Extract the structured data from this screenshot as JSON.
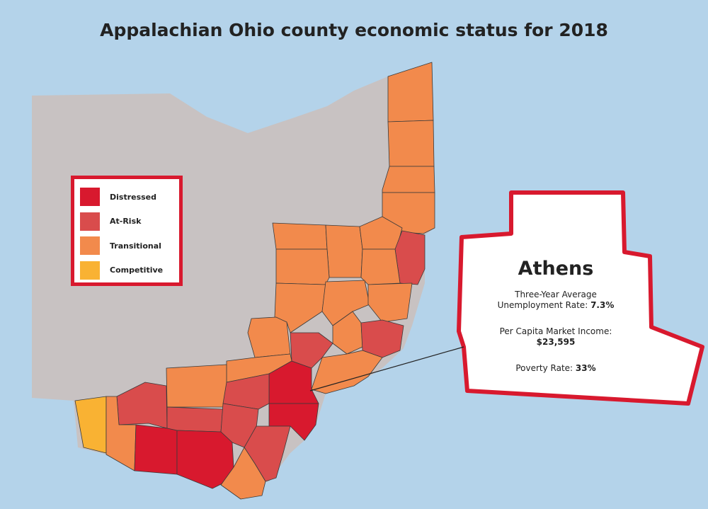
{
  "title": "Appalachian Ohio county economic status for 2018",
  "legend": [
    {
      "label": "Distressed",
      "color": "#d8192e"
    },
    {
      "label": "At-Risk",
      "color": "#d94c4c"
    },
    {
      "label": "Transitional",
      "color": "#f28a4c"
    },
    {
      "label": "Competitive",
      "color": "#f9b233"
    }
  ],
  "callout": {
    "title": "Athens",
    "stats": [
      {
        "label": "Three-Year Average Unemployment Rate:",
        "value": "7.3%"
      },
      {
        "label": "Per Capita Market Income:",
        "value": "$23,595"
      },
      {
        "label": "Poverty Rate:",
        "value": "33%"
      }
    ]
  }
}
